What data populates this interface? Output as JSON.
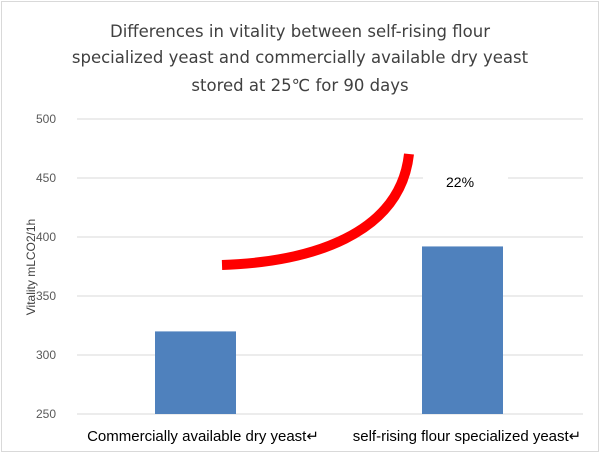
{
  "chart_data": {
    "type": "bar",
    "title_lines": [
      "Differences in vitality between self-rising flour",
      "specialized yeast and commercially available dry yeast",
      "stored at 25℃ for 90 days"
    ],
    "xlabel": "",
    "ylabel": "Vitality mLCO2/1h",
    "ylim": [
      250,
      500
    ],
    "yticks": [
      "250",
      "300",
      "350",
      "400",
      "450",
      "500"
    ],
    "categories": [
      "Commercially available dry yeast↵",
      "self-rising flour specialized yeast↵"
    ],
    "values": [
      320,
      392
    ],
    "bar_color": "#4f81bd",
    "grid": true,
    "annotation": {
      "text": "22%",
      "arrow_color": "#ff0000"
    }
  }
}
